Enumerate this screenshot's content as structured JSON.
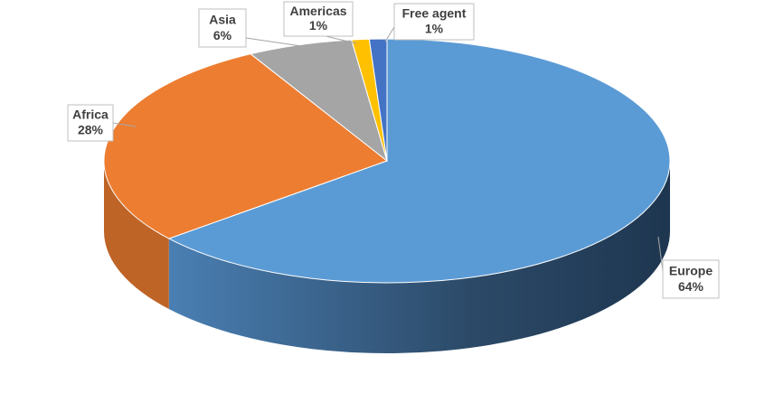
{
  "chart_data": {
    "type": "pie",
    "categories": [
      "Europe",
      "Africa",
      "Asia",
      "Americas",
      "Free agent"
    ],
    "values": [
      64,
      28,
      6,
      1,
      1
    ],
    "value_labels": [
      "64%",
      "28%",
      "6%",
      "1%",
      "1%"
    ],
    "colors": [
      "#5b9bd5",
      "#ed7d31",
      "#a5a5a5",
      "#ffc000",
      "#4472c4"
    ]
  }
}
